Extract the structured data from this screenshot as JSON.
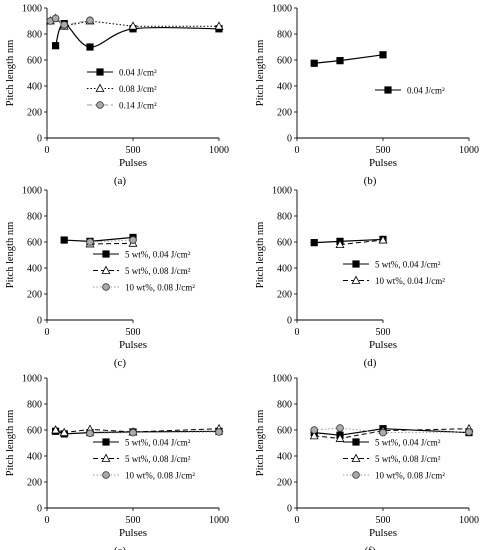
{
  "chart_data": [
    {
      "type": "line",
      "panel": "(a)",
      "xlabel": "Pulses",
      "ylabel": "Pitch length nm",
      "xlim": [
        0,
        1000
      ],
      "ylim": [
        0,
        1000
      ],
      "xticks": [
        0,
        500,
        1000
      ],
      "yticks": [
        0,
        200,
        400,
        600,
        800,
        1000
      ],
      "grid": false,
      "legend_position": "lower-right",
      "series": [
        {
          "name": "0.04 J/cm²",
          "marker": "square-filled",
          "line": "solid",
          "smooth": true,
          "color": "#000000",
          "x": [
            50,
            100,
            250,
            500,
            1000
          ],
          "y": [
            710,
            880,
            700,
            840,
            840
          ]
        },
        {
          "name": "0.08 J/cm²",
          "marker": "triangle-open",
          "line": "dotted",
          "color": "#000000",
          "x": [
            20,
            50,
            100,
            250,
            500,
            1000
          ],
          "y": [
            900,
            920,
            860,
            900,
            860,
            860
          ]
        },
        {
          "name": "0.14 J/cm²",
          "marker": "circle-gray",
          "line": "dashed",
          "color": "#999999",
          "x": [
            20,
            50,
            100,
            250
          ],
          "y": [
            900,
            920,
            870,
            905
          ]
        }
      ]
    },
    {
      "type": "line",
      "panel": "(b)",
      "xlabel": "Pulses",
      "ylabel": "Pitch length nm",
      "xlim": [
        0,
        1000
      ],
      "ylim": [
        0,
        1000
      ],
      "xticks": [
        0,
        500,
        1000
      ],
      "yticks": [
        0,
        200,
        400,
        600,
        800,
        1000
      ],
      "grid": false,
      "legend_position": "right",
      "series": [
        {
          "name": "0.04 J/cm²",
          "marker": "square-filled",
          "line": "solid",
          "color": "#000000",
          "x": [
            100,
            250,
            500
          ],
          "y": [
            575,
            595,
            640
          ]
        }
      ]
    },
    {
      "type": "line",
      "panel": "(c)",
      "xlabel": "Pulses",
      "ylabel": "Pitch length nm",
      "xlim": [
        0,
        500
      ],
      "ylim": [
        0,
        1000
      ],
      "xticks": [
        0,
        500
      ],
      "yticks": [
        0,
        200,
        400,
        600,
        800,
        1000
      ],
      "grid": false,
      "legend_position": "lower-right",
      "series": [
        {
          "name": "5 wt%, 0.04 J/cm²",
          "marker": "square-filled",
          "line": "solid",
          "color": "#000000",
          "x": [
            100,
            250,
            500
          ],
          "y": [
            615,
            605,
            635
          ]
        },
        {
          "name": "5 wt%, 0.08 J/cm²",
          "marker": "triangle-open",
          "line": "dashed",
          "color": "#000000",
          "x": [
            250,
            500
          ],
          "y": [
            585,
            590
          ]
        },
        {
          "name": "10 wt%, 0.08 J/cm²",
          "marker": "circle-gray",
          "line": "dotted",
          "color": "#999999",
          "x": [
            250,
            500
          ],
          "y": [
            600,
            615
          ]
        }
      ]
    },
    {
      "type": "line",
      "panel": "(d)",
      "xlabel": "Pulses",
      "ylabel": "Pitch length nm",
      "xlim": [
        0,
        500
      ],
      "ylim": [
        0,
        1000
      ],
      "xticks": [
        0,
        500
      ],
      "yticks": [
        0,
        200,
        400,
        600,
        800,
        1000
      ],
      "grid": false,
      "legend_position": "lower-right",
      "series": [
        {
          "name": "5 wt%, 0.04 J/cm²",
          "marker": "square-filled",
          "line": "solid",
          "color": "#000000",
          "x": [
            100,
            250,
            500
          ],
          "y": [
            595,
            605,
            620
          ]
        },
        {
          "name": "10 wt%, 0.04 J/cm²",
          "marker": "triangle-open",
          "line": "dashed",
          "color": "#000000",
          "x": [
            250,
            500
          ],
          "y": [
            580,
            615
          ]
        }
      ]
    },
    {
      "type": "line",
      "panel": "(e)",
      "xlabel": "Pulses",
      "ylabel": "Pitch length nm",
      "xlim": [
        0,
        1000
      ],
      "ylim": [
        0,
        1000
      ],
      "xticks": [
        0,
        500,
        1000
      ],
      "yticks": [
        0,
        200,
        400,
        600,
        800,
        1000
      ],
      "grid": false,
      "legend_position": "lower-right",
      "series": [
        {
          "name": "5 wt%, 0.04 J/cm²",
          "marker": "square-filled",
          "line": "solid",
          "color": "#000000",
          "x": [
            50,
            100,
            250,
            500,
            1000
          ],
          "y": [
            590,
            570,
            580,
            585,
            590
          ]
        },
        {
          "name": "5 wt%, 0.08 J/cm²",
          "marker": "triangle-open",
          "line": "dashed",
          "color": "#000000",
          "x": [
            50,
            100,
            250,
            500,
            1000
          ],
          "y": [
            600,
            580,
            605,
            585,
            610
          ]
        },
        {
          "name": "10 wt%, 0.08 J/cm²",
          "marker": "circle-gray",
          "line": "dotted",
          "color": "#999999",
          "x": [
            250,
            500,
            1000
          ],
          "y": [
            575,
            580,
            585
          ]
        }
      ]
    },
    {
      "type": "line",
      "panel": "(f)",
      "xlabel": "Pulses",
      "ylabel": "Pitch length nm",
      "xlim": [
        0,
        1000
      ],
      "ylim": [
        0,
        1000
      ],
      "xticks": [
        0,
        500,
        1000
      ],
      "yticks": [
        0,
        200,
        400,
        600,
        800,
        1000
      ],
      "grid": false,
      "legend_position": "lower-right",
      "series": [
        {
          "name": "5 wt%, 0.04 J/cm²",
          "marker": "square-filled",
          "line": "solid",
          "color": "#000000",
          "x": [
            100,
            250,
            500,
            1000
          ],
          "y": [
            580,
            560,
            610,
            580
          ]
        },
        {
          "name": "5 wt%, 0.08 J/cm²",
          "marker": "triangle-open",
          "line": "dashed",
          "color": "#000000",
          "x": [
            100,
            250,
            500,
            1000
          ],
          "y": [
            555,
            535,
            595,
            610
          ]
        },
        {
          "name": "10 wt%, 0.08 J/cm²",
          "marker": "circle-gray",
          "line": "dotted",
          "color": "#999999",
          "x": [
            100,
            250,
            500,
            1000
          ],
          "y": [
            600,
            615,
            580,
            585
          ]
        }
      ]
    }
  ]
}
